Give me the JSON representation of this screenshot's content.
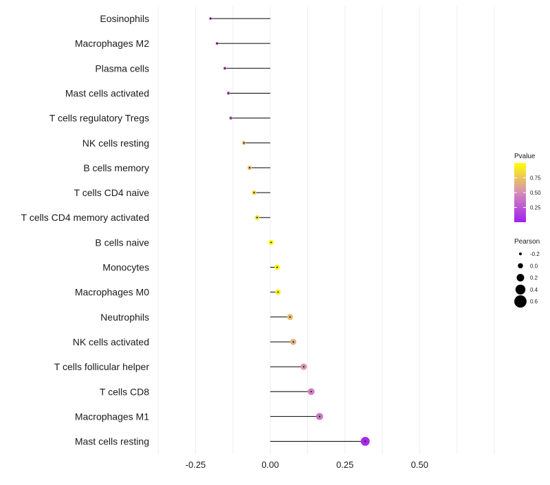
{
  "chart_data": {
    "type": "lollipop",
    "title": "",
    "xlabel": "",
    "ylabel": "",
    "xlim": [
      -0.38,
      0.78
    ],
    "x_ticks": [
      -0.25,
      0.0,
      0.25,
      0.5
    ],
    "x_tick_labels": [
      "-0.25",
      "0.00",
      "0.25",
      "0.50"
    ],
    "grid": true,
    "categories": [
      "Eosinophils",
      "Macrophages M2",
      "Plasma cells",
      "Mast cells activated",
      "T cells regulatory  Tregs",
      "NK cells resting",
      "B cells memory",
      "T cells CD4 naive",
      "T cells CD4 memory activated",
      "B cells naive",
      "Monocytes",
      "Macrophages M0",
      "Neutrophils",
      "NK cells activated",
      "T cells follicular helper",
      "T cells CD8",
      "Macrophages M1",
      "Mast cells resting"
    ],
    "pearson": [
      -0.2,
      -0.178,
      -0.152,
      -0.14,
      -0.132,
      -0.088,
      -0.069,
      -0.054,
      -0.044,
      0.003,
      0.023,
      0.026,
      0.066,
      0.077,
      0.112,
      0.137,
      0.165,
      0.318
    ],
    "pvalue": [
      0.3,
      0.35,
      0.4,
      0.42,
      0.45,
      0.7,
      0.72,
      0.8,
      0.85,
      0.98,
      0.95,
      0.94,
      0.7,
      0.65,
      0.55,
      0.45,
      0.4,
      0.05
    ],
    "color_legend": {
      "title": "Pvalue",
      "ticks": [
        0.25,
        0.5,
        0.75
      ],
      "tick_labels": [
        "0.25",
        "0.50",
        "0.75"
      ],
      "range": [
        0.0,
        1.0
      ],
      "low_color": "#a020f0",
      "mid_color": "#d68cb8",
      "high_color": "#ffff00"
    },
    "size_legend": {
      "title": "Pearson",
      "values": [
        -0.2,
        0.0,
        0.2,
        0.4,
        0.6
      ],
      "labels": [
        "-0.2",
        "0.0",
        "0.2",
        "0.4",
        "0.6"
      ]
    },
    "colors": {
      "segment": "#000000",
      "grid": "#ebebeb",
      "background": "#ffffff"
    }
  }
}
